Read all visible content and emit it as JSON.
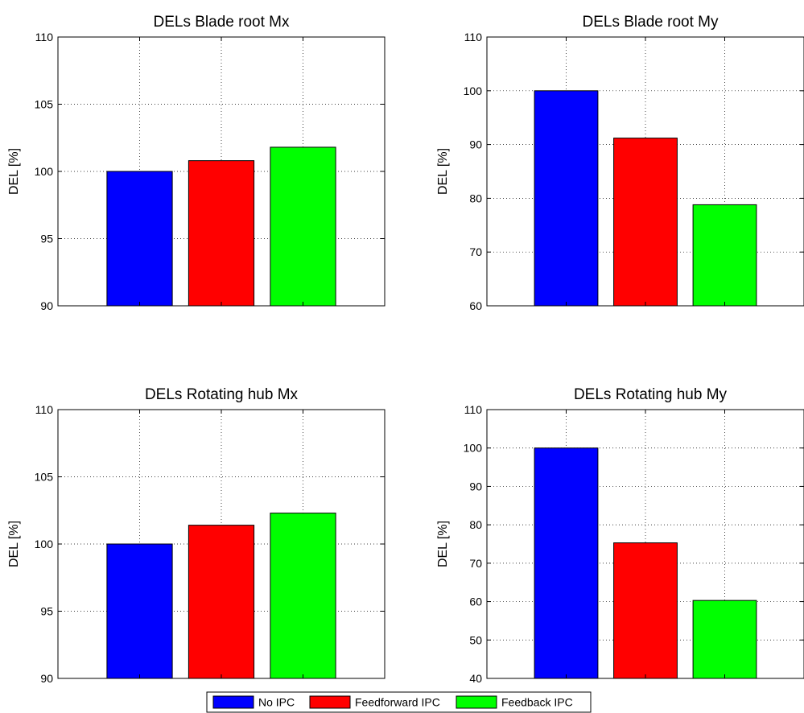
{
  "legend": {
    "entries": [
      {
        "label": "No IPC",
        "color": "#0000ff"
      },
      {
        "label": "Feedforward IPC",
        "color": "#ff0000"
      },
      {
        "label": "Feedback IPC",
        "color": "#00ff00"
      }
    ]
  },
  "chart_data": [
    {
      "type": "bar",
      "title": "DELs Blade root Mx",
      "ylabel": "DEL [%]",
      "xlabel": "",
      "ylim": [
        90,
        110
      ],
      "yticks": [
        90,
        95,
        100,
        105,
        110
      ],
      "grid": true,
      "categories": [
        "No IPC",
        "Feedforward IPC",
        "Feedback IPC"
      ],
      "values": [
        100,
        100.8,
        101.8
      ],
      "colors": [
        "#0000ff",
        "#ff0000",
        "#00ff00"
      ]
    },
    {
      "type": "bar",
      "title": "DELs Blade root My",
      "ylabel": "DEL [%]",
      "xlabel": "",
      "ylim": [
        60,
        110
      ],
      "yticks": [
        60,
        70,
        80,
        90,
        100,
        110
      ],
      "grid": true,
      "categories": [
        "No IPC",
        "Feedforward IPC",
        "Feedback IPC"
      ],
      "values": [
        100,
        91.2,
        78.8
      ],
      "colors": [
        "#0000ff",
        "#ff0000",
        "#00ff00"
      ]
    },
    {
      "type": "bar",
      "title": "DELs Rotating hub Mx",
      "ylabel": "DEL [%]",
      "xlabel": "",
      "ylim": [
        90,
        110
      ],
      "yticks": [
        90,
        95,
        100,
        105,
        110
      ],
      "grid": true,
      "categories": [
        "No IPC",
        "Feedforward IPC",
        "Feedback IPC"
      ],
      "values": [
        100,
        101.4,
        102.3
      ],
      "colors": [
        "#0000ff",
        "#ff0000",
        "#00ff00"
      ]
    },
    {
      "type": "bar",
      "title": "DELs Rotating hub My",
      "ylabel": "DEL [%]",
      "xlabel": "",
      "ylim": [
        40,
        110
      ],
      "yticks": [
        40,
        50,
        60,
        70,
        80,
        90,
        100,
        110
      ],
      "grid": true,
      "categories": [
        "No IPC",
        "Feedforward IPC",
        "Feedback IPC"
      ],
      "values": [
        100,
        75.3,
        60.3
      ],
      "colors": [
        "#0000ff",
        "#ff0000",
        "#00ff00"
      ]
    }
  ]
}
